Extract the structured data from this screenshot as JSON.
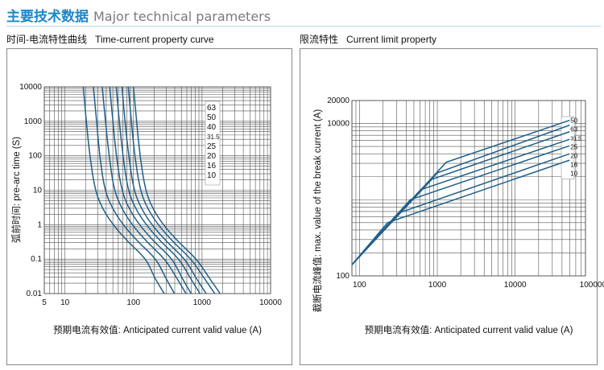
{
  "header": {
    "title_cn": "主要技术数据",
    "title_en": "Major technical parameters"
  },
  "panels": {
    "left_title_cn": "时间-电流特性曲线",
    "left_title_en": "Time-current property curve",
    "right_title_cn": "限流特性",
    "right_title_en": "Current limit property"
  },
  "colors": {
    "curve": "#1f5f8b",
    "grid": "#555555",
    "accent": "#1f86c8"
  },
  "chart_data": [
    {
      "type": "line",
      "title": "Time-current property curve",
      "xlabel": "预期电流有效值: Anticipated current valid value (A)",
      "ylabel": "弧前时间: pre-arc time (S)",
      "xscale": "log",
      "yscale": "log",
      "xlim": [
        5,
        10000
      ],
      "ylim": [
        0.01,
        10000
      ],
      "xticks": [
        "5",
        "10",
        "100",
        "1000",
        "10000"
      ],
      "xtick_values": [
        5,
        10,
        100,
        1000,
        10000
      ],
      "yticks": [
        "10000",
        "1000",
        "100",
        "10",
        "1",
        "0.1",
        "0.01"
      ],
      "ytick_values": [
        10000,
        1000,
        100,
        10,
        1,
        0.1,
        0.01
      ],
      "grid": true,
      "legend": [
        "63",
        "50",
        "40",
        "31.5",
        "25",
        "20",
        "16",
        "10"
      ],
      "y": [
        10000,
        1000,
        100,
        10,
        3,
        1,
        0.3,
        0.1,
        0.03,
        0.01
      ],
      "series": [
        {
          "name": "10",
          "x": [
            18.5,
            20.5,
            23,
            27.5,
            35,
            50,
            85,
            155,
            200,
            281
          ]
        },
        {
          "name": "16",
          "x": [
            26,
            29,
            32,
            38,
            49,
            70,
            119,
            217,
            290,
            396
          ]
        },
        {
          "name": "20",
          "x": [
            35,
            39,
            44,
            52,
            67,
            95,
            160,
            290,
            420,
            584
          ]
        },
        {
          "name": "25",
          "x": [
            45,
            50,
            56,
            67,
            85,
            121,
            205,
            375,
            500,
            694
          ]
        },
        {
          "name": "31.5",
          "x": [
            56,
            62,
            70,
            83,
            106,
            152,
            258,
            470,
            660,
            934
          ]
        },
        {
          "name": "40",
          "x": [
            68,
            75,
            85,
            101,
            129,
            184,
            313,
            570,
            800,
            1150
          ]
        },
        {
          "name": "50",
          "x": [
            84,
            93,
            104,
            125,
            159,
            227,
            386,
            700,
            1050,
            1535
          ]
        },
        {
          "name": "63",
          "x": [
            100,
            111,
            124,
            149,
            189,
            270,
            460,
            840,
            1250,
            1840
          ]
        }
      ]
    },
    {
      "type": "line",
      "title": "Current limit property",
      "xlabel": "预期电流有效值: Anticipated current valid value (A)",
      "ylabel": "截断电流峰值: max. value of the break current (A)",
      "xscale": "log",
      "yscale": "log",
      "xlim": [
        80,
        80000
      ],
      "ylim": [
        100,
        20000
      ],
      "xticks": [
        "100",
        "1000",
        "10000",
        "100000"
      ],
      "xtick_values": [
        100,
        1000,
        10000,
        100000
      ],
      "yticks": [
        "20000",
        "10000",
        "100"
      ],
      "ytick_values": [
        20000,
        10000,
        100
      ],
      "grid": true,
      "start": [
        80,
        140
      ],
      "series": [
        {
          "name": "50",
          "x": [
            1300,
            50000
          ],
          "y": [
            3100,
            11000
          ]
        },
        {
          "name": "63",
          "x": [
            1000,
            50000
          ],
          "y": [
            2250,
            9500
          ]
        },
        {
          "name": "31.5",
          "x": [
            850,
            50000
          ],
          "y": [
            1850,
            7800
          ]
        },
        {
          "name": "25",
          "x": [
            610,
            50000
          ],
          "y": [
            1350,
            6200
          ]
        },
        {
          "name": "20",
          "x": [
            450,
            50000
          ],
          "y": [
            1000,
            5100
          ]
        },
        {
          "name": "16",
          "x": [
            313,
            50000
          ],
          "y": [
            665,
            4000
          ]
        },
        {
          "name": "10",
          "x": [
            230,
            50000
          ],
          "y": [
            500,
            3300
          ]
        }
      ]
    }
  ]
}
